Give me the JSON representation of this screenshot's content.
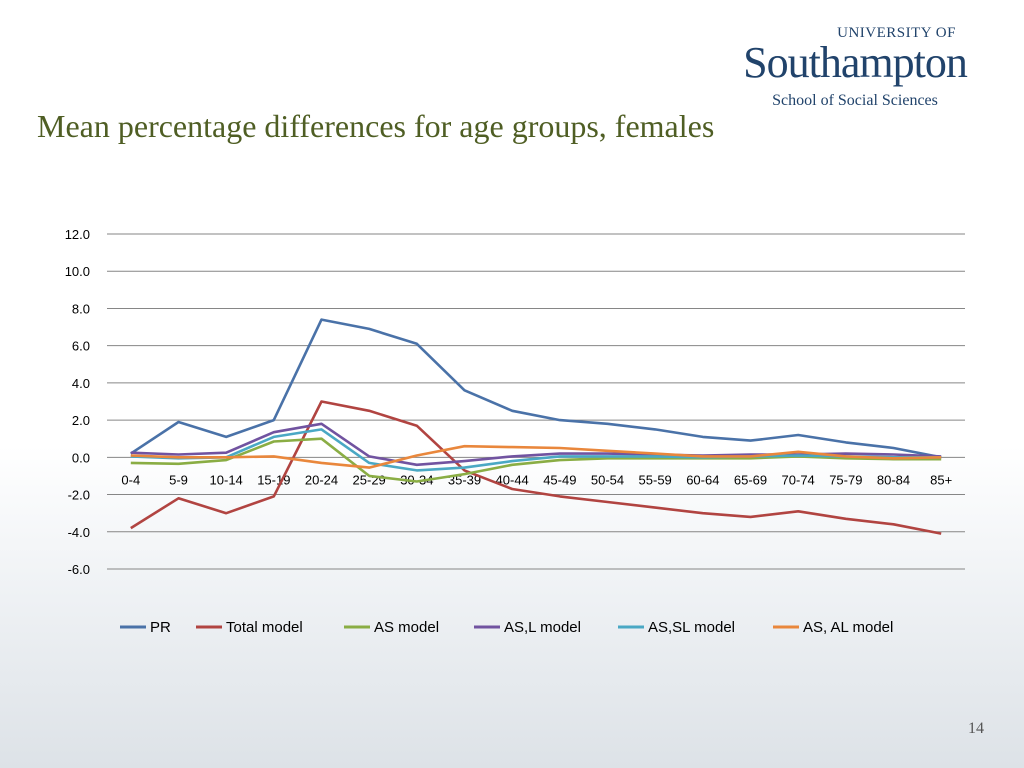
{
  "logo": {
    "top": "UNIVERSITY OF",
    "main": "Southampton",
    "sub": "School of Social Sciences"
  },
  "slide": {
    "title": "Mean percentage differences for age groups, females",
    "page_number": "14"
  },
  "colors": {
    "title": "#4f5e24",
    "logo": "#21436b",
    "grid": "#868686"
  },
  "chart_data": {
    "type": "line",
    "title": "",
    "xlabel": "",
    "ylabel": "",
    "ylim": [
      -6,
      12
    ],
    "yticks": [
      "12.0",
      "10.0",
      "8.0",
      "6.0",
      "4.0",
      "2.0",
      "0.0",
      "-2.0",
      "-4.0",
      "-6.0"
    ],
    "grid": true,
    "legend_position": "bottom",
    "categories": [
      "0-4",
      "5-9",
      "10-14",
      "15-19",
      "20-24",
      "25-29",
      "30-34",
      "35-39",
      "40-44",
      "45-49",
      "50-54",
      "55-59",
      "60-64",
      "65-69",
      "70-74",
      "75-79",
      "80-84",
      "85+"
    ],
    "series": [
      {
        "name": "PR",
        "color": "#4a72a8",
        "values": [
          0.2,
          1.9,
          1.1,
          2.0,
          7.4,
          6.9,
          6.1,
          3.6,
          2.5,
          2.0,
          1.8,
          1.5,
          1.1,
          0.9,
          1.2,
          0.8,
          0.5,
          0.0
        ]
      },
      {
        "name": "Total model",
        "color": "#b14441",
        "values": [
          -3.8,
          -2.2,
          -3.0,
          -2.1,
          3.0,
          2.5,
          1.7,
          -0.7,
          -1.7,
          -2.1,
          -2.4,
          -2.7,
          -3.0,
          -3.2,
          -2.9,
          -3.3,
          -3.6,
          -4.1
        ]
      },
      {
        "name": "AS model",
        "color": "#8aad44",
        "values": [
          -0.3,
          -0.35,
          -0.15,
          0.85,
          1.0,
          -1.0,
          -1.3,
          -0.9,
          -0.4,
          -0.15,
          -0.05,
          -0.05,
          -0.05,
          -0.05,
          0.05,
          -0.05,
          -0.1,
          -0.1
        ]
      },
      {
        "name": "AS,L model",
        "color": "#7153a0",
        "values": [
          0.25,
          0.15,
          0.25,
          1.35,
          1.8,
          0.05,
          -0.4,
          -0.2,
          0.05,
          0.2,
          0.2,
          0.15,
          0.1,
          0.15,
          0.15,
          0.2,
          0.15,
          0.05
        ]
      },
      {
        "name": "AS,SL model",
        "color": "#4aa8c4",
        "values": [
          0.05,
          -0.05,
          0.0,
          1.1,
          1.5,
          -0.3,
          -0.7,
          -0.55,
          -0.2,
          0.05,
          0.05,
          0.05,
          0.0,
          0.05,
          0.1,
          0.05,
          0.0,
          0.0
        ]
      },
      {
        "name": "AS, AL model",
        "color": "#e9873c",
        "values": [
          0.1,
          0.0,
          0.0,
          0.05,
          -0.3,
          -0.55,
          0.1,
          0.6,
          0.55,
          0.5,
          0.35,
          0.2,
          0.05,
          0.05,
          0.3,
          0.05,
          -0.05,
          0.0
        ]
      }
    ]
  }
}
